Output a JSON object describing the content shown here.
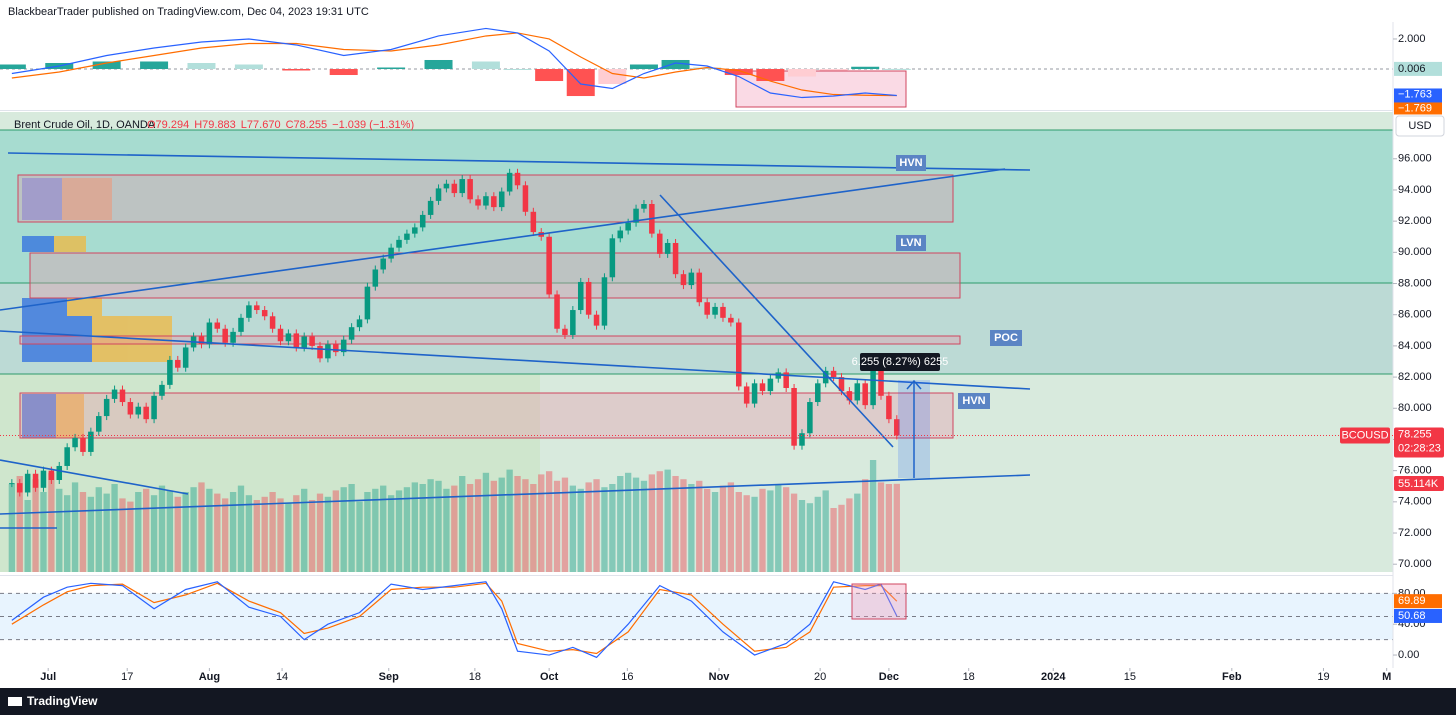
{
  "header": {
    "published": "BlackbearTrader published on TradingView.com, Dec 04, 2023 19:31 UTC",
    "brand": "TradingView"
  },
  "chart_data": {
    "type": "candlestick",
    "title": "Brent Crude Oil, 1D, OANDA",
    "legend_values": [
      "O79.294",
      "H79.883",
      "L77.670",
      "C78.255",
      "−1.039 (−1.31%)"
    ],
    "currency": "USD",
    "symbol": "BCOUSD",
    "last_price": 78.255,
    "last_price_label": "78.255",
    "countdown": "02:28:23",
    "volume_label": "55.114K",
    "measure_label": "6.255 (8.27%) 6255",
    "annotations": [
      "HVN",
      "LVN",
      "POC",
      "HVN"
    ],
    "up_color": "#089981",
    "down_color": "#f23645",
    "xlim": [
      -1.5,
      174.8
    ],
    "xticks": [
      {
        "value": 4.6,
        "label": "Jul"
      },
      {
        "value": 14.6,
        "label": "17"
      },
      {
        "value": 25,
        "label": "Aug"
      },
      {
        "value": 34.2,
        "label": "14"
      },
      {
        "value": 47.7,
        "label": "Sep"
      },
      {
        "value": 58.6,
        "label": "18"
      },
      {
        "value": 68,
        "label": "Oct"
      },
      {
        "value": 77.9,
        "label": "16"
      },
      {
        "value": 89.5,
        "label": "Nov"
      },
      {
        "value": 102.3,
        "label": "20"
      },
      {
        "value": 111,
        "label": "Dec"
      },
      {
        "value": 121.1,
        "label": "18"
      },
      {
        "value": 131.8,
        "label": "2024"
      },
      {
        "value": 141.5,
        "label": "15"
      },
      {
        "value": 154.4,
        "label": "Feb"
      },
      {
        "value": 166,
        "label": "19"
      },
      {
        "value": 174,
        "label": "M"
      }
    ],
    "ylim": [
      69.5,
      99.0
    ],
    "yticks": [
      {
        "value": 70,
        "label": "70.000"
      },
      {
        "value": 72,
        "label": "72.000"
      },
      {
        "value": 74,
        "label": "74.000"
      },
      {
        "value": 76,
        "label": "76.000"
      },
      {
        "value": 78,
        "label": "78.000"
      },
      {
        "value": 80,
        "label": "80.000"
      },
      {
        "value": 82,
        "label": "82.000"
      },
      {
        "value": 84,
        "label": "84.000"
      },
      {
        "value": 86,
        "label": "86.000"
      },
      {
        "value": 88,
        "label": "88.000"
      },
      {
        "value": 90,
        "label": "90.000"
      },
      {
        "value": 92,
        "label": "92.000"
      },
      {
        "value": 94,
        "label": "94.000"
      },
      {
        "value": 96,
        "label": "96.000"
      }
    ],
    "close": [
      75.2,
      74.6,
      75.8,
      74.9,
      76.0,
      75.4,
      76.3,
      77.5,
      78.1,
      77.2,
      78.5,
      79.5,
      80.6,
      81.2,
      80.4,
      79.6,
      80.1,
      79.3,
      80.8,
      81.5,
      83.1,
      82.6,
      83.9,
      84.6,
      84.1,
      85.5,
      85.1,
      84.2,
      84.9,
      85.8,
      86.6,
      86.3,
      85.9,
      85.1,
      84.3,
      84.8,
      83.9,
      84.6,
      84.0,
      83.2,
      84.1,
      83.6,
      84.4,
      85.2,
      85.7,
      87.8,
      88.9,
      89.6,
      90.3,
      90.8,
      91.2,
      91.6,
      92.4,
      93.3,
      94.1,
      94.4,
      93.8,
      94.7,
      93.4,
      93.0,
      93.6,
      92.9,
      93.9,
      95.1,
      94.3,
      92.6,
      91.3,
      91.0,
      87.3,
      85.1,
      84.7,
      86.3,
      88.1,
      86.0,
      85.3,
      88.4,
      90.9,
      91.4,
      91.9,
      92.8,
      93.1,
      91.2,
      89.9,
      90.6,
      88.6,
      87.9,
      88.7,
      86.8,
      86.0,
      86.5,
      85.8,
      85.5,
      81.4,
      80.3,
      81.6,
      81.1,
      81.9,
      82.3,
      81.3,
      77.6,
      78.4,
      80.4,
      81.6,
      82.4,
      82.0,
      81.1,
      80.5,
      81.6,
      80.2,
      82.6,
      80.8,
      79.3,
      78.255
    ],
    "volume": [
      55,
      60,
      45,
      58,
      50,
      62,
      52,
      48,
      56,
      50,
      47,
      53,
      49,
      55,
      46,
      44,
      50,
      52,
      48,
      54,
      51,
      47,
      50,
      53,
      56,
      52,
      49,
      46,
      50,
      54,
      48,
      45,
      47,
      50,
      46,
      43,
      48,
      52,
      45,
      49,
      47,
      51,
      53,
      55,
      44,
      50,
      52,
      54,
      48,
      51,
      53,
      56,
      55,
      58,
      57,
      52,
      54,
      60,
      55,
      58,
      62,
      57,
      59,
      64,
      60,
      58,
      55,
      61,
      63,
      57,
      59,
      54,
      52,
      56,
      58,
      53,
      55,
      60,
      62,
      59,
      57,
      61,
      63,
      64,
      60,
      58,
      55,
      57,
      52,
      50,
      54,
      56,
      50,
      48,
      47,
      52,
      51,
      55,
      53,
      49,
      45,
      43,
      47,
      51,
      40,
      42,
      46,
      49,
      58,
      70,
      56,
      55,
      55.114
    ],
    "macd": {
      "x": [
        0,
        6,
        12,
        18,
        24,
        30,
        36,
        42,
        48,
        54,
        60,
        64,
        68,
        72,
        76,
        80,
        84,
        88,
        92,
        96,
        100,
        104,
        108,
        112
      ],
      "macd": [
        -0.3,
        0.2,
        0.9,
        1.4,
        1.8,
        2.0,
        1.6,
        0.9,
        1.3,
        2.2,
        2.7,
        2.4,
        1.2,
        -1.0,
        -1.3,
        -0.3,
        0.4,
        0.2,
        -0.5,
        -1.6,
        -1.9,
        -1.8,
        -1.6,
        -1.763
      ],
      "signal": [
        -0.6,
        -0.2,
        0.4,
        0.9,
        1.4,
        1.7,
        1.7,
        1.3,
        1.2,
        1.6,
        2.2,
        2.4,
        2.0,
        0.8,
        -0.3,
        -0.6,
        -0.2,
        0.1,
        -0.1,
        -0.8,
        -1.4,
        -1.7,
        -1.75,
        -1.769
      ],
      "histogram": [
        0.3,
        0.4,
        0.5,
        0.5,
        0.4,
        0.3,
        -0.1,
        -0.4,
        0.1,
        0.6,
        0.5,
        0.0,
        -0.8,
        -1.8,
        -1.0,
        0.3,
        0.6,
        0.1,
        -0.4,
        -0.8,
        -0.5,
        -0.1,
        0.15,
        0.006
      ],
      "macd_label": "−1.763",
      "signal_label": "−1.769",
      "ylim": [
        -2.73,
        3.13
      ],
      "yticks": [
        {
          "value": 2,
          "label": "2.000"
        }
      ]
    },
    "stoch": {
      "x": [
        0,
        4,
        7,
        10,
        14,
        18,
        22,
        26,
        30,
        34,
        37,
        40,
        44,
        48,
        52,
        56,
        60,
        62,
        64,
        68,
        71,
        74,
        78,
        82,
        86,
        90,
        94,
        98,
        101,
        104,
        108,
        110,
        112
      ],
      "k": [
        45,
        75,
        88,
        93,
        90,
        60,
        85,
        95,
        62,
        50,
        20,
        40,
        55,
        92,
        85,
        90,
        95,
        60,
        5,
        0,
        10,
        -3,
        40,
        90,
        70,
        30,
        0,
        15,
        40,
        95,
        85,
        92,
        50.68
      ],
      "d": [
        40,
        65,
        82,
        90,
        92,
        68,
        78,
        93,
        70,
        55,
        28,
        35,
        50,
        85,
        88,
        88,
        93,
        70,
        15,
        5,
        7,
        2,
        30,
        85,
        78,
        40,
        5,
        10,
        30,
        88,
        90,
        90,
        69.89
      ],
      "levels": [
        80,
        50,
        20
      ],
      "ylim": [
        -16.8,
        102.5
      ],
      "yticks": [
        {
          "value": 80,
          "label": "80.00"
        },
        {
          "value": 40,
          "label": "40.00"
        },
        {
          "value": 0,
          "label": "0.00"
        }
      ]
    }
  }
}
